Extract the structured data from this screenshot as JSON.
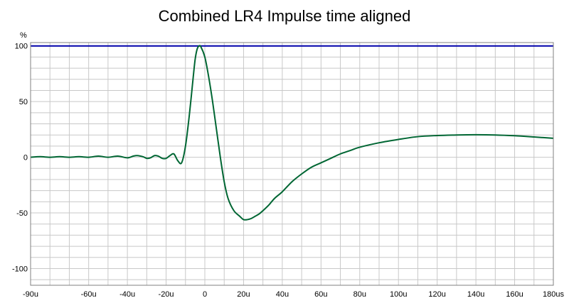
{
  "chart_data": {
    "type": "line",
    "title": "Combined LR4 Impulse time aligned",
    "ylabel": "%",
    "xlabel": "",
    "xlim": [
      -90,
      180
    ],
    "ylim": [
      -115,
      103
    ],
    "grid": true,
    "x_tick_values": [
      -90,
      -60,
      -40,
      -20,
      0,
      20,
      40,
      60,
      80,
      100,
      120,
      140,
      160,
      180
    ],
    "x_tick_labels": [
      "-90u",
      "-60u",
      "-40u",
      "-20u",
      "0",
      "20u",
      "40u",
      "60u",
      "80u",
      "100u",
      "120u",
      "140u",
      "160u",
      "180us"
    ],
    "x_minor_values": [
      -80,
      -70,
      -50,
      -30,
      -10,
      10,
      30,
      50,
      70,
      90,
      110,
      130,
      150,
      170
    ],
    "y_tick_values": [
      100,
      50,
      0,
      -50,
      -100
    ],
    "y_tick_labels": [
      "100",
      "50",
      "0",
      "-50",
      "-100"
    ],
    "y_minor_values": [
      90,
      80,
      70,
      60,
      40,
      30,
      20,
      10,
      -10,
      -20,
      -30,
      -40,
      -60,
      -70,
      -80,
      -90,
      -110
    ],
    "colors": {
      "impulse": "#006633",
      "reference": "#0000aa",
      "grid": "#c8c8c8",
      "axis": "#808080"
    },
    "series": [
      {
        "type": "hline",
        "y": 100
      },
      {
        "x": [
          -90,
          -85,
          -80,
          -75,
          -70,
          -65,
          -60,
          -55,
          -50,
          -45,
          -40,
          -37,
          -35,
          -32,
          -30,
          -28,
          -26,
          -24,
          -22,
          -20,
          -18,
          -16,
          -14,
          -12,
          -10,
          -8,
          -6,
          -5,
          -4,
          -3,
          -2,
          0,
          2,
          4,
          6,
          8,
          10,
          12,
          15,
          18,
          20,
          22,
          24,
          26,
          28,
          30,
          33,
          36,
          40,
          45,
          50,
          55,
          60,
          65,
          70,
          75,
          80,
          90,
          100,
          110,
          120,
          130,
          140,
          150,
          160,
          170,
          180
        ],
        "y": [
          0,
          0.5,
          0,
          0.5,
          0,
          0.5,
          0,
          1,
          0,
          1,
          -0.5,
          1,
          1.5,
          0.5,
          -1,
          -0.5,
          1.5,
          1,
          -1,
          -1,
          1.5,
          3,
          -3,
          -5,
          10,
          38,
          72,
          88,
          97,
          100,
          99,
          90,
          72,
          50,
          25,
          0,
          -22,
          -37,
          -48,
          -53,
          -56,
          -56,
          -55,
          -53,
          -51,
          -48,
          -43,
          -37,
          -31,
          -22,
          -15,
          -9,
          -5,
          -1,
          3,
          6,
          9,
          13,
          16,
          18.5,
          19.5,
          20,
          20.2,
          20,
          19.3,
          18.2,
          17
        ]
      }
    ]
  }
}
